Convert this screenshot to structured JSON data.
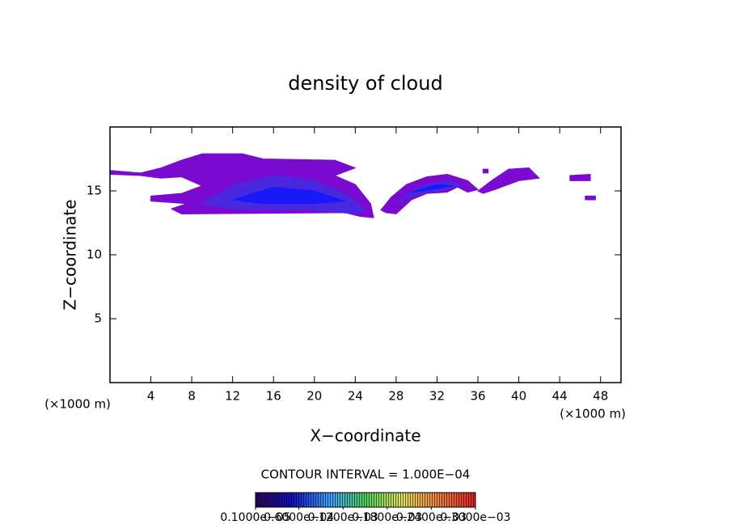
{
  "chart_data": {
    "type": "contour",
    "title": "density of cloud",
    "x_label": "X−coordinate",
    "y_label": "Z−coordinate",
    "x_unit": "(×1000 m)",
    "y_unit": "(×1000 m)",
    "contour_interval": "CONTOUR INTERVAL = 1.000E−04",
    "xlim": [
      0,
      50
    ],
    "ylim": [
      0,
      20
    ],
    "xticks": [
      4,
      8,
      12,
      16,
      20,
      24,
      28,
      32,
      36,
      40,
      44,
      48
    ],
    "yticks": [
      5,
      10,
      15
    ],
    "level_colors": [
      "#7a0ad0",
      "#4a28e0",
      "#1818f8"
    ],
    "regions": [
      {
        "level": 0,
        "points": [
          [
            0,
            16.6
          ],
          [
            3,
            16.4
          ],
          [
            5,
            16.8
          ],
          [
            7,
            17.4
          ],
          [
            9,
            17.9
          ],
          [
            13,
            17.9
          ],
          [
            15,
            17.5
          ],
          [
            22,
            17.4
          ],
          [
            24,
            16.8
          ],
          [
            22,
            16.2
          ],
          [
            24,
            15.5
          ],
          [
            25.5,
            14
          ],
          [
            25.8,
            12.9
          ],
          [
            24.5,
            13
          ],
          [
            23,
            13.3
          ],
          [
            7,
            13.2
          ],
          [
            6,
            13.6
          ],
          [
            7.5,
            14
          ],
          [
            4,
            14.2
          ],
          [
            4,
            14.6
          ],
          [
            7,
            14.8
          ],
          [
            9,
            15.4
          ],
          [
            7,
            16.1
          ],
          [
            5,
            16
          ],
          [
            3,
            16.2
          ],
          [
            0,
            16.3
          ]
        ]
      },
      {
        "level": 1,
        "points": [
          [
            9,
            14
          ],
          [
            12,
            15.4
          ],
          [
            16,
            16.2
          ],
          [
            20,
            15.8
          ],
          [
            23,
            14.8
          ],
          [
            25,
            13.5
          ],
          [
            24,
            13.2
          ],
          [
            20,
            13.5
          ],
          [
            12,
            13.6
          ]
        ]
      },
      {
        "level": 2,
        "points": [
          [
            12,
            14.3
          ],
          [
            16,
            15.3
          ],
          [
            20,
            15
          ],
          [
            23,
            14.2
          ],
          [
            20,
            14
          ],
          [
            15,
            14
          ]
        ]
      },
      {
        "level": 0,
        "points": [
          [
            26.5,
            13.5
          ],
          [
            27.5,
            14.5
          ],
          [
            29,
            15.5
          ],
          [
            31,
            16.1
          ],
          [
            33,
            16.3
          ],
          [
            35,
            15.8
          ],
          [
            36,
            15.1
          ],
          [
            35,
            14.9
          ],
          [
            34,
            15.3
          ],
          [
            33,
            14.9
          ],
          [
            31,
            14.8
          ],
          [
            29.5,
            14.3
          ],
          [
            28,
            13.2
          ],
          [
            27,
            13.3
          ]
        ]
      },
      {
        "level": 1,
        "points": [
          [
            28,
            14
          ],
          [
            30,
            15.3
          ],
          [
            33,
            15.8
          ],
          [
            34.5,
            15.4
          ],
          [
            32,
            15
          ],
          [
            29.5,
            14.6
          ]
        ]
      },
      {
        "level": 2,
        "points": [
          [
            29.5,
            14.9
          ],
          [
            32,
            15.5
          ],
          [
            33.5,
            15.4
          ],
          [
            31.5,
            15.1
          ]
        ]
      },
      {
        "level": 0,
        "points": [
          [
            36,
            15
          ],
          [
            37.5,
            15.9
          ],
          [
            39,
            16.7
          ],
          [
            41,
            16.8
          ],
          [
            42,
            16
          ],
          [
            40,
            15.8
          ],
          [
            38,
            15.2
          ],
          [
            36.5,
            14.8
          ]
        ]
      },
      {
        "level": 0,
        "points": [
          [
            45,
            16.2
          ],
          [
            47,
            16.3
          ],
          [
            47,
            15.8
          ],
          [
            45,
            15.8
          ]
        ]
      },
      {
        "level": 0,
        "points": [
          [
            46.5,
            14.6
          ],
          [
            47.5,
            14.6
          ],
          [
            47.5,
            14.3
          ],
          [
            46.5,
            14.3
          ]
        ]
      },
      {
        "level": 0,
        "points": [
          [
            36.5,
            16.7
          ],
          [
            37,
            16.7
          ],
          [
            37,
            16.4
          ],
          [
            36.5,
            16.4
          ]
        ]
      }
    ],
    "colorbar": {
      "lim": [
        1e-06,
        0.0003
      ],
      "colors": [
        "#30005a",
        "#1010c0",
        "#40a0ff",
        "#50d060",
        "#e0e060",
        "#f08040",
        "#e02020"
      ],
      "ticks": [
        {
          "value": 1e-06,
          "label": "0.1000e−05"
        },
        {
          "value": 6e-05,
          "label": "0.6000e−04"
        },
        {
          "value": 0.00012,
          "label": "0.1200e−03"
        },
        {
          "value": 0.00018,
          "label": "0.1800e−03"
        },
        {
          "value": 0.00024,
          "label": "0.2400e−03"
        },
        {
          "value": 0.0003,
          "label": "0.3000e−03"
        }
      ]
    }
  }
}
